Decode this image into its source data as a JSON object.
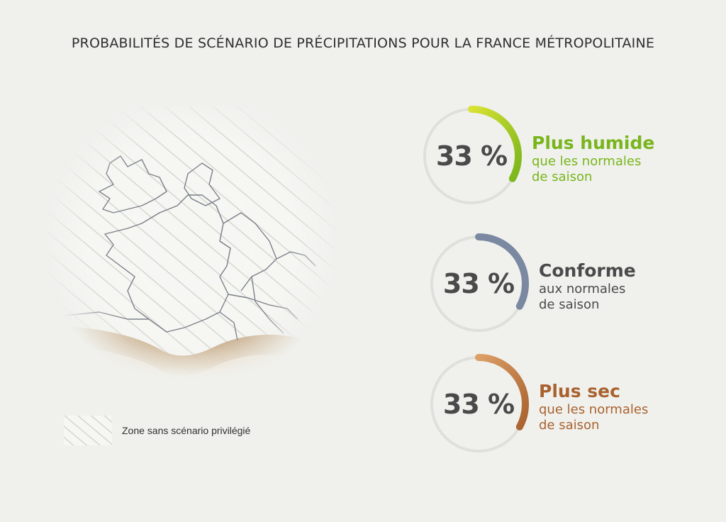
{
  "header": {
    "title": "PROBABILITÉS DE SCÉNARIO DE PRÉCIPITATIONS POUR LA FRANCE MÉTROPOLITAINE"
  },
  "map": {
    "hatch_color": "#dcdcd6",
    "border_color": "#6e7378",
    "dry_zone_color": "#b28b5d"
  },
  "legend": {
    "label": "Zone sans scénario privilégié"
  },
  "scenarios": [
    {
      "percent_label": "33 %",
      "probability": 0.33,
      "label": "Plus humide",
      "sub_line1": "que les normales",
      "sub_line2": "de saison",
      "color": "#79b51c",
      "color_light": "#d8e233"
    },
    {
      "percent_label": "33 %",
      "probability": 0.33,
      "label": "Conforme",
      "sub_line1": "aux normales",
      "sub_line2": "de saison",
      "color": "#7a88a2",
      "color_light": "#7a88a2"
    },
    {
      "percent_label": "33 %",
      "probability": 0.33,
      "label": "Plus sec",
      "sub_line1": "que les normales",
      "sub_line2": "de saison",
      "color": "#a9622f",
      "color_light": "#dc9f66"
    }
  ]
}
